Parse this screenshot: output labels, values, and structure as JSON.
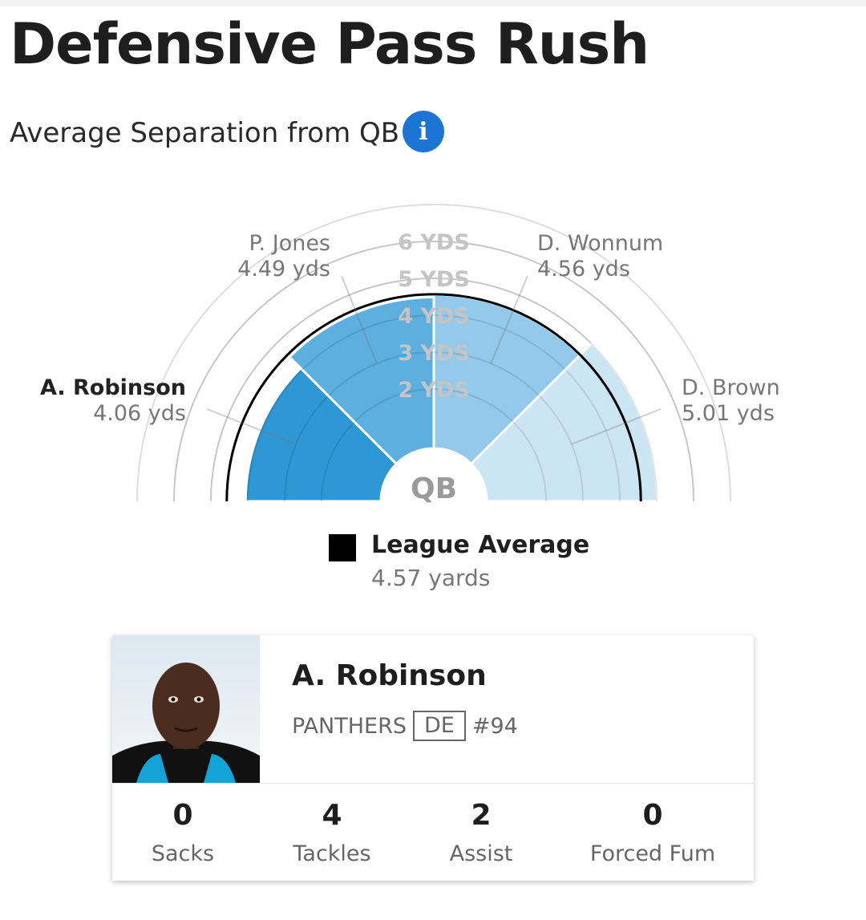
{
  "header": {
    "title": "Defensive Pass Rush",
    "subtitle": "Average Separation from QB",
    "info_icon": "info-icon"
  },
  "chart_data": {
    "type": "polar-bar",
    "center_label": "QB",
    "ring_labels": [
      "2 YDS",
      "3 YDS",
      "4 YDS",
      "5 YDS",
      "6 YDS"
    ],
    "unit": "yds",
    "league_average": 4.57,
    "players": [
      {
        "name": "A. Robinson",
        "value": 4.06,
        "value_text": "4.06 yds",
        "highlighted": true,
        "color": "#2f97d4"
      },
      {
        "name": "P. Jones",
        "value": 4.49,
        "value_text": "4.49 yds",
        "highlighted": false,
        "color": "#5cafdf"
      },
      {
        "name": "D. Wonnum",
        "value": 4.56,
        "value_text": "4.56 yds",
        "highlighted": false,
        "color": "#93c9ea"
      },
      {
        "name": "D. Brown",
        "value": 5.01,
        "value_text": "5.01 yds",
        "highlighted": false,
        "color": "#cce5f3"
      }
    ]
  },
  "legend": {
    "label": "League Average",
    "value": "4.57 yards",
    "swatch_color": "#000000"
  },
  "player_card": {
    "name": "A. Robinson",
    "team": "PANTHERS",
    "position": "DE",
    "number": "#94",
    "stats": [
      {
        "label": "Sacks",
        "value": "0"
      },
      {
        "label": "Tackles",
        "value": "4"
      },
      {
        "label": "Assist",
        "value": "2"
      },
      {
        "label": "Forced Fum",
        "value": "0"
      }
    ]
  }
}
